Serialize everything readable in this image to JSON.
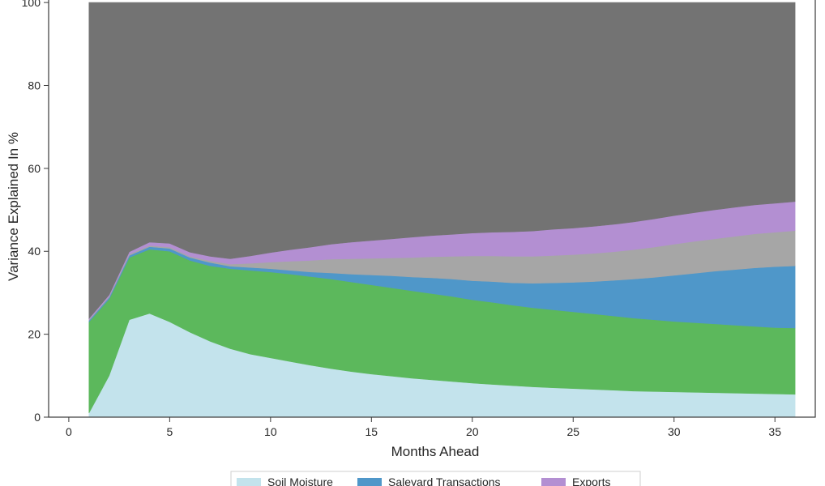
{
  "chart_data": {
    "type": "area",
    "stacked": true,
    "xlabel": "Months Ahead",
    "ylabel": "Variance Explained In %",
    "xlim": [
      -1,
      37
    ],
    "ylim": [
      0,
      101
    ],
    "xticks": [
      0,
      5,
      10,
      15,
      20,
      25,
      30,
      35
    ],
    "yticks": [
      0,
      20,
      40,
      60,
      80,
      100
    ],
    "grid": false,
    "legend_position": "bottom",
    "x": [
      1,
      2,
      3,
      4,
      5,
      6,
      7,
      8,
      9,
      10,
      11,
      12,
      13,
      14,
      15,
      16,
      17,
      18,
      19,
      20,
      21,
      22,
      23,
      24,
      25,
      26,
      27,
      28,
      29,
      30,
      31,
      32,
      33,
      34,
      35,
      36
    ],
    "series": [
      {
        "name": "Soil Moisture",
        "color": "#c3e3ec",
        "values": [
          1,
          10,
          23.5,
          25,
          23,
          20.5,
          18.3,
          16.5,
          15.2,
          14.3,
          13.4,
          12.5,
          11.7,
          11,
          10.4,
          9.9,
          9.4,
          9,
          8.6,
          8.2,
          7.9,
          7.6,
          7.3,
          7.1,
          6.9,
          6.7,
          6.5,
          6.3,
          6.2,
          6.1,
          6,
          5.9,
          5.8,
          5.7,
          5.6,
          5.5
        ]
      },
      {
        "color": "#5cb85c",
        "values": [
          22,
          18.5,
          15,
          15.5,
          17,
          17.3,
          18.2,
          19.3,
          20.2,
          20.7,
          21.1,
          21.4,
          21.6,
          21.6,
          21.5,
          21.3,
          21.1,
          20.8,
          20.5,
          20.1,
          19.8,
          19.4,
          19.1,
          18.8,
          18.5,
          18.2,
          17.9,
          17.6,
          17.3,
          17,
          16.8,
          16.6,
          16.4,
          16.2,
          16,
          16
        ]
      },
      {
        "name": "Saleyard Transactions",
        "color": "#4f97c9",
        "values": [
          0.3,
          0.4,
          0.5,
          0.6,
          0.7,
          0.7,
          0.8,
          0.6,
          0.7,
          0.8,
          0.9,
          1.1,
          1.5,
          1.9,
          2.4,
          2.9,
          3.3,
          3.8,
          4.2,
          4.6,
          5,
          5.4,
          5.9,
          6.5,
          7.1,
          7.8,
          8.6,
          9.4,
          10.2,
          11.1,
          11.9,
          12.7,
          13.4,
          14.1,
          14.7,
          15
        ]
      },
      {
        "color": "#a6a6a6",
        "values": [
          0.2,
          0.2,
          0.3,
          0.3,
          0.3,
          0.3,
          0.4,
          0.5,
          1,
          1.6,
          2.2,
          2.8,
          3.3,
          3.7,
          4,
          4.3,
          4.7,
          5.1,
          5.5,
          6,
          6.2,
          6.4,
          6.5,
          6.6,
          6.7,
          6.8,
          6.9,
          7.1,
          7.3,
          7.5,
          7.7,
          7.8,
          8,
          8.2,
          8.3,
          8.5
        ]
      },
      {
        "name": "Exports",
        "color": "#b38fd2",
        "values": [
          0.3,
          0.4,
          0.6,
          0.8,
          0.9,
          1,
          1.1,
          1.3,
          1.8,
          2.3,
          2.8,
          3.2,
          3.6,
          4,
          4.3,
          4.6,
          4.9,
          5.1,
          5.3,
          5.5,
          5.7,
          5.9,
          6.1,
          6.3,
          6.4,
          6.5,
          6.6,
          6.7,
          6.8,
          6.9,
          6.9,
          7,
          7,
          7,
          7,
          7
        ]
      },
      {
        "color": "#737373",
        "values": [
          76.2,
          70.5,
          60.1,
          57.8,
          58.1,
          60.2,
          61.2,
          61.8,
          61.1,
          60.3,
          59.6,
          59,
          58.3,
          57.8,
          57.4,
          57,
          56.6,
          56.2,
          55.9,
          55.6,
          55.4,
          55.3,
          55.1,
          54.7,
          54.4,
          54,
          53.5,
          52.9,
          52.2,
          51.4,
          50.7,
          50,
          49.4,
          48.8,
          48.4,
          48
        ]
      }
    ]
  }
}
